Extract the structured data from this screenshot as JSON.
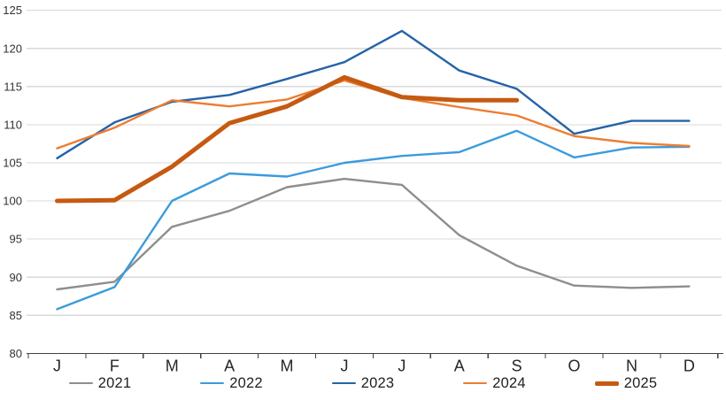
{
  "chart_data": {
    "type": "line",
    "title": "",
    "xlabel": "",
    "ylabel": "",
    "categories": [
      "J",
      "F",
      "M",
      "A",
      "M",
      "J",
      "J",
      "A",
      "S",
      "O",
      "N",
      "D"
    ],
    "series": [
      {
        "name": "2021",
        "color": "#8E8E8E",
        "thick": false,
        "values": [
          88.4,
          89.4,
          96.6,
          98.7,
          101.8,
          102.9,
          102.1,
          95.5,
          91.5,
          88.9,
          88.6,
          88.8
        ]
      },
      {
        "name": "2022",
        "color": "#3B9CDC",
        "thick": false,
        "values": [
          85.8,
          88.7,
          100.0,
          103.6,
          103.2,
          105.0,
          105.9,
          106.4,
          109.2,
          105.7,
          107.0,
          107.1
        ]
      },
      {
        "name": "2023",
        "color": "#2563A8",
        "thick": false,
        "values": [
          105.6,
          110.3,
          113.0,
          113.9,
          116.0,
          118.2,
          122.3,
          117.1,
          114.7,
          108.8,
          110.5,
          110.5
        ]
      },
      {
        "name": "2024",
        "color": "#ED7D31",
        "thick": false,
        "values": [
          106.9,
          109.6,
          113.2,
          112.4,
          113.3,
          115.8,
          113.5,
          112.3,
          111.2,
          108.5,
          107.6,
          107.2
        ]
      },
      {
        "name": "2025",
        "color": "#C55A11",
        "thick": true,
        "values": [
          100.0,
          100.1,
          104.5,
          110.2,
          112.4,
          116.2,
          113.6,
          113.2,
          113.2,
          null,
          null,
          null
        ]
      }
    ],
    "ylim": [
      80,
      125
    ],
    "ytick_step": 5,
    "ytick_labels": [
      "80",
      "85",
      "90",
      "95",
      "100",
      "105",
      "110",
      "115",
      "120",
      "125"
    ],
    "grid": true,
    "legend_position": "bottom",
    "colors": {
      "gridline": "#D9D9D9",
      "axis": "#404040",
      "tick_text": "#333333",
      "month_text": "#262626"
    }
  }
}
